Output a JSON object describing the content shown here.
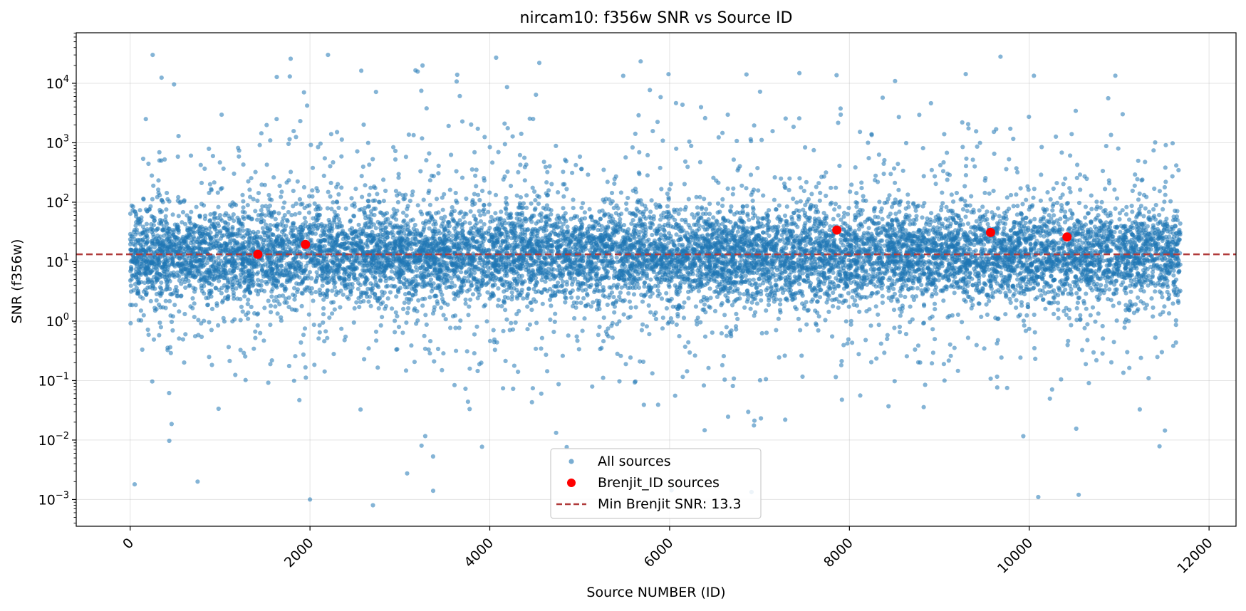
{
  "chart_data": {
    "type": "scatter",
    "title": "nircam10: f356w SNR vs Source ID",
    "xlabel": "Source NUMBER (ID)",
    "ylabel": "SNR (f356w)",
    "xlim": [
      -600,
      12300
    ],
    "ylim_log10": [
      -3.45,
      4.85
    ],
    "yscale": "log",
    "grid": true,
    "legend_location": "lower center",
    "x_ticks": [
      0,
      2000,
      4000,
      6000,
      8000,
      10000,
      12000
    ],
    "x_tick_labels": [
      "0",
      "2000",
      "4000",
      "6000",
      "8000",
      "10000",
      "12000"
    ],
    "y_ticks_log10": [
      -3,
      -2,
      -1,
      0,
      1,
      2,
      3,
      4
    ],
    "y_tick_labels": [
      "10",
      "10",
      "10",
      "10",
      "10",
      "10",
      "10",
      "10"
    ],
    "y_tick_exponents": [
      "−3",
      "−2",
      "−1",
      "0",
      "1",
      "2",
      "3",
      "4"
    ],
    "series": [
      {
        "name": "All sources",
        "color": "#1f77b4",
        "marker": "circle-small",
        "x_range": [
          1,
          11680
        ],
        "count_estimate": 11680,
        "median_snr_approx": 13,
        "notable_points": [
          {
            "x": 250,
            "y": 30000
          },
          {
            "x": 2200,
            "y": 30000
          },
          {
            "x": 4070,
            "y": 27000
          },
          {
            "x": 9680,
            "y": 28000
          },
          {
            "x": 2000,
            "y": 0.001
          },
          {
            "x": 2700,
            "y": 0.0008
          },
          {
            "x": 10100,
            "y": 0.0011
          },
          {
            "x": 10550,
            "y": 0.0012
          },
          {
            "x": 50,
            "y": 0.0018
          },
          {
            "x": 750,
            "y": 0.002
          },
          {
            "x": 3370,
            "y": 0.0014
          }
        ]
      },
      {
        "name": "Brenjit_ID sources",
        "color": "#ff0000",
        "marker": "circle",
        "x": [
          1420,
          1950,
          7860,
          9570,
          10420
        ],
        "y": [
          13.3,
          19.5,
          34,
          31,
          26
        ]
      }
    ],
    "reference_line": {
      "name": "Min Brenjit SNR: 13.3",
      "value": 13.3,
      "color": "#b03a3a",
      "style": "dashed"
    }
  }
}
